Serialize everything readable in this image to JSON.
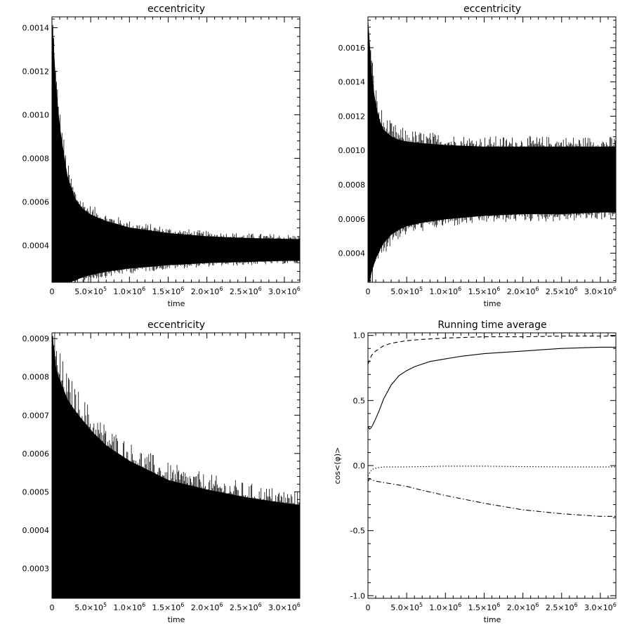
{
  "chart_data": [
    {
      "type": "line",
      "title": "eccentricity",
      "xlabel": "time",
      "ylabel": "",
      "xlim": [
        0,
        3200000
      ],
      "ylim": [
        0.00023,
        0.00145
      ],
      "xticks": [
        {
          "v": 0,
          "m": "0"
        },
        {
          "v": 500000,
          "m": "5.0×10",
          "e": "5"
        },
        {
          "v": 1000000,
          "m": "1.0×10",
          "e": "6"
        },
        {
          "v": 1500000,
          "m": "1.5×10",
          "e": "6"
        },
        {
          "v": 2000000,
          "m": "2.0×10",
          "e": "6"
        },
        {
          "v": 2500000,
          "m": "2.5×10",
          "e": "6"
        },
        {
          "v": 3000000,
          "m": "3.0×10",
          "e": "6"
        }
      ],
      "yticks": [
        {
          "v": 0.0004,
          "label": "0.0004"
        },
        {
          "v": 0.0006,
          "label": "0.0006"
        },
        {
          "v": 0.0008,
          "label": "0.0008"
        },
        {
          "v": 0.001,
          "label": "0.0010"
        },
        {
          "v": 0.0012,
          "label": "0.0012"
        },
        {
          "v": 0.0014,
          "label": "0.0014"
        }
      ],
      "envelope": {
        "x": [
          0,
          25000,
          50000,
          100000,
          150000,
          200000,
          300000,
          400000,
          500000,
          700000,
          1000000,
          1500000,
          2000000,
          2500000,
          3000000,
          3200000
        ],
        "upper": [
          0.00142,
          0.00128,
          0.00112,
          0.00094,
          0.00082,
          0.00071,
          0.00061,
          0.000565,
          0.00054,
          0.00051,
          0.00048,
          0.000455,
          0.00044,
          0.000432,
          0.000428,
          0.000427
        ],
        "lower": [
          0.00023,
          0.00023,
          0.00023,
          0.00023,
          0.00023,
          0.00023,
          0.00024,
          0.000255,
          0.000265,
          0.00028,
          0.000295,
          0.00031,
          0.00032,
          0.000325,
          0.00033,
          0.00033
        ]
      }
    },
    {
      "type": "line",
      "title": "eccentricity",
      "xlabel": "time",
      "ylabel": "",
      "xlim": [
        0,
        3200000
      ],
      "ylim": [
        0.00023,
        0.00178
      ],
      "xticks": [
        {
          "v": 0,
          "m": "0"
        },
        {
          "v": 500000,
          "m": "5.0×10",
          "e": "5"
        },
        {
          "v": 1000000,
          "m": "1.0×10",
          "e": "6"
        },
        {
          "v": 1500000,
          "m": "1.5×10",
          "e": "6"
        },
        {
          "v": 2000000,
          "m": "2.0×10",
          "e": "6"
        },
        {
          "v": 2500000,
          "m": "2.5×10",
          "e": "6"
        },
        {
          "v": 3000000,
          "m": "3.0×10",
          "e": "6"
        }
      ],
      "yticks": [
        {
          "v": 0.0004,
          "label": "0.0004"
        },
        {
          "v": 0.0006,
          "label": "0.0006"
        },
        {
          "v": 0.0008,
          "label": "0.0008"
        },
        {
          "v": 0.001,
          "label": "0.0010"
        },
        {
          "v": 0.0012,
          "label": "0.0012"
        },
        {
          "v": 0.0014,
          "label": "0.0014"
        },
        {
          "v": 0.0016,
          "label": "0.0016"
        }
      ],
      "envelope": {
        "x": [
          0,
          25000,
          50000,
          100000,
          150000,
          200000,
          300000,
          400000,
          500000,
          700000,
          1000000,
          1500000,
          2000000,
          2500000,
          3000000,
          3200000
        ],
        "upper": [
          0.00175,
          0.00158,
          0.00142,
          0.00126,
          0.00117,
          0.00112,
          0.00108,
          0.00106,
          0.00105,
          0.00104,
          0.00103,
          0.00102,
          0.00102,
          0.00102,
          0.00102,
          0.00102
        ],
        "lower": [
          0.00023,
          0.00025,
          0.0003,
          0.00037,
          0.00042,
          0.00046,
          0.00051,
          0.00054,
          0.00056,
          0.00058,
          0.0006,
          0.00062,
          0.00063,
          0.00063,
          0.00064,
          0.00064
        ]
      }
    },
    {
      "type": "line",
      "title": "eccentricity",
      "xlabel": "time",
      "ylabel": "",
      "xlim": [
        0,
        3200000
      ],
      "ylim": [
        0.000222,
        0.000915
      ],
      "xticks": [
        {
          "v": 0,
          "m": "0"
        },
        {
          "v": 500000,
          "m": "5.0×10",
          "e": "5"
        },
        {
          "v": 1000000,
          "m": "1.0×10",
          "e": "6"
        },
        {
          "v": 1500000,
          "m": "1.5×10",
          "e": "6"
        },
        {
          "v": 2000000,
          "m": "2.0×10",
          "e": "6"
        },
        {
          "v": 2500000,
          "m": "2.5×10",
          "e": "6"
        },
        {
          "v": 3000000,
          "m": "3.0×10",
          "e": "6"
        }
      ],
      "yticks": [
        {
          "v": 0.0003,
          "label": "0.0003"
        },
        {
          "v": 0.0004,
          "label": "0.0004"
        },
        {
          "v": 0.0005,
          "label": "0.0005"
        },
        {
          "v": 0.0006,
          "label": "0.0006"
        },
        {
          "v": 0.0007,
          "label": "0.0007"
        },
        {
          "v": 0.0008,
          "label": "0.0008"
        },
        {
          "v": 0.0009,
          "label": "0.0009"
        }
      ],
      "envelope": {
        "x": [
          0,
          25000,
          50000,
          100000,
          200000,
          300000,
          500000,
          700000,
          1000000,
          1300000,
          1500000,
          2000000,
          2500000,
          3000000,
          3200000
        ],
        "upper": [
          0.00091,
          0.00087,
          0.00082,
          0.00079,
          0.00074,
          0.00071,
          0.00066,
          0.00062,
          0.00058,
          0.00055,
          0.00053,
          0.000505,
          0.000485,
          0.00047,
          0.000465
        ],
        "lower": [
          0.000222,
          0.000222,
          0.000222,
          0.000222,
          0.000222,
          0.000222,
          0.000222,
          0.000222,
          0.000222,
          0.000222,
          0.000222,
          0.000222,
          0.000222,
          0.000222,
          0.000222
        ]
      }
    },
    {
      "type": "line",
      "title": "Running time average",
      "xlabel": "time",
      "ylabel": "cos<(φ)>",
      "xlim": [
        0,
        3200000
      ],
      "ylim": [
        -1.02,
        1.02
      ],
      "xticks": [
        {
          "v": 0,
          "m": "0"
        },
        {
          "v": 500000,
          "m": "5.0×10",
          "e": "5"
        },
        {
          "v": 1000000,
          "m": "1.0×10",
          "e": "6"
        },
        {
          "v": 1500000,
          "m": "1.5×10",
          "e": "6"
        },
        {
          "v": 2000000,
          "m": "2.0×10",
          "e": "6"
        },
        {
          "v": 2500000,
          "m": "2.5×10",
          "e": "6"
        },
        {
          "v": 3000000,
          "m": "3.0×10",
          "e": "6"
        }
      ],
      "yticks": [
        {
          "v": -1.0,
          "label": "-1.0"
        },
        {
          "v": -0.5,
          "label": "-0.5"
        },
        {
          "v": 0.0,
          "label": "0.0"
        },
        {
          "v": 0.5,
          "label": "0.5"
        },
        {
          "v": 1.0,
          "label": "1.0"
        }
      ],
      "series": [
        {
          "style": "dashed",
          "x": [
            0,
            25000,
            50000,
            100000,
            200000,
            300000,
            500000,
            700000,
            1000000,
            1500000,
            2000000,
            2500000,
            3000000,
            3200000
          ],
          "values": [
            0.78,
            0.82,
            0.85,
            0.88,
            0.92,
            0.94,
            0.96,
            0.97,
            0.98,
            0.99,
            0.99,
            0.995,
            0.995,
            0.995
          ]
        },
        {
          "style": "solid",
          "x": [
            0,
            20000,
            40000,
            60000,
            100000,
            150000,
            200000,
            300000,
            400000,
            500000,
            600000,
            700000,
            800000,
            1000000,
            1200000,
            1500000,
            2000000,
            2500000,
            3000000,
            3200000
          ],
          "values": [
            0.3,
            0.28,
            0.29,
            0.31,
            0.36,
            0.43,
            0.51,
            0.62,
            0.69,
            0.73,
            0.76,
            0.78,
            0.8,
            0.82,
            0.84,
            0.86,
            0.88,
            0.9,
            0.91,
            0.91
          ]
        },
        {
          "style": "dotted",
          "x": [
            0,
            25000,
            50000,
            100000,
            200000,
            300000,
            500000,
            1000000,
            1500000,
            2000000,
            2500000,
            3000000,
            3200000
          ],
          "values": [
            -0.08,
            -0.05,
            -0.03,
            -0.02,
            -0.01,
            -0.01,
            -0.01,
            -0.005,
            -0.005,
            -0.008,
            -0.01,
            -0.01,
            -0.01
          ]
        },
        {
          "style": "dashdot",
          "x": [
            0,
            25000,
            50000,
            100000,
            200000,
            300000,
            500000,
            700000,
            1000000,
            1500000,
            2000000,
            2500000,
            3000000,
            3200000
          ],
          "values": [
            -0.12,
            -0.1,
            -0.11,
            -0.12,
            -0.13,
            -0.14,
            -0.16,
            -0.19,
            -0.23,
            -0.29,
            -0.34,
            -0.37,
            -0.39,
            -0.39
          ]
        }
      ]
    }
  ]
}
